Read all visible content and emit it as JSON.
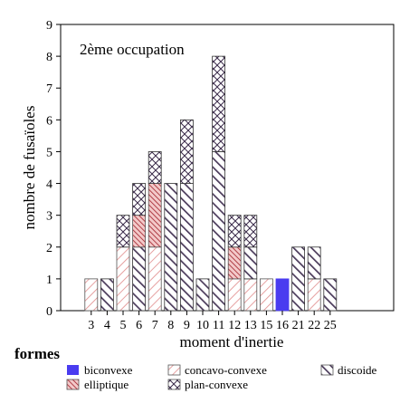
{
  "chart_data": {
    "type": "bar",
    "stacked": true,
    "title": "2ème occupation",
    "xlabel": "moment d'inertie",
    "ylabel": "nombre de fusaïoles",
    "ylim": [
      0,
      9
    ],
    "y_ticks": [
      "0",
      "1",
      "2",
      "3",
      "4",
      "5",
      "6",
      "7",
      "8",
      "9"
    ],
    "categories": [
      "3",
      "4",
      "5",
      "6",
      "7",
      "8",
      "9",
      "10",
      "11",
      "12",
      "13",
      "15",
      "16",
      "21",
      "22",
      "25"
    ],
    "series": [
      {
        "name": "biconvexe",
        "pattern": "solid-blue",
        "values": [
          0,
          0,
          0,
          0,
          0,
          0,
          0,
          0,
          0,
          0,
          0,
          0,
          1,
          0,
          0,
          0
        ]
      },
      {
        "name": "concavo-convexe",
        "pattern": "light-diag",
        "values": [
          1,
          0,
          2,
          0,
          2,
          0,
          0,
          0,
          0,
          1,
          1,
          1,
          0,
          0,
          1,
          0
        ]
      },
      {
        "name": "discoide",
        "pattern": "dark-diag",
        "values": [
          0,
          1,
          0,
          2,
          0,
          4,
          4,
          1,
          5,
          0,
          1,
          0,
          0,
          2,
          1,
          1
        ]
      },
      {
        "name": "elliptique",
        "pattern": "red-hatch",
        "values": [
          0,
          0,
          0,
          1,
          2,
          0,
          0,
          0,
          0,
          1,
          0,
          0,
          0,
          0,
          0,
          0
        ]
      },
      {
        "name": "plan-convexe",
        "pattern": "crosshatch",
        "values": [
          0,
          0,
          1,
          1,
          1,
          0,
          2,
          0,
          3,
          1,
          1,
          0,
          0,
          0,
          0,
          0
        ]
      }
    ],
    "legend_title": "formes",
    "legend_position": "bottom",
    "grid": false
  }
}
